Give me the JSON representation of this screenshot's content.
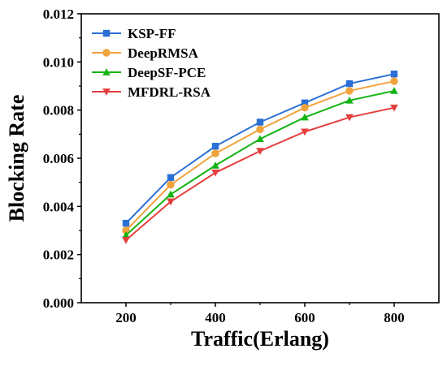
{
  "chart_data": {
    "type": "line",
    "title": "",
    "xlabel": "Traffic(Erlang)",
    "ylabel": "Blocking Rate",
    "x": [
      200,
      300,
      400,
      500,
      600,
      700,
      800
    ],
    "xlim": [
      100,
      900
    ],
    "ylim": [
      0,
      0.012
    ],
    "xticks": [
      "200",
      "400",
      "600",
      "800"
    ],
    "yticks": [
      "0.000",
      "0.002",
      "0.004",
      "0.006",
      "0.008",
      "0.010",
      "0.012"
    ],
    "legend_position": "top-left",
    "grid": false,
    "series": [
      {
        "name": "KSP-FF",
        "color": "#2a6fd6",
        "marker": "square",
        "values": [
          0.0033,
          0.0052,
          0.0065,
          0.0075,
          0.0083,
          0.0091,
          0.0095
        ]
      },
      {
        "name": "DeepRMSA",
        "color": "#f0a33c",
        "marker": "circle",
        "values": [
          0.003,
          0.0049,
          0.0062,
          0.0072,
          0.0081,
          0.0088,
          0.0092
        ]
      },
      {
        "name": "DeepSF-PCE",
        "color": "#13b313",
        "marker": "triangle-up",
        "values": [
          0.0028,
          0.0045,
          0.0057,
          0.0068,
          0.0077,
          0.0084,
          0.0088
        ]
      },
      {
        "name": "MFDRL-RSA",
        "color": "#e53e3e",
        "marker": "triangle-down",
        "values": [
          0.0026,
          0.0042,
          0.0054,
          0.0063,
          0.0071,
          0.0077,
          0.0081
        ]
      }
    ]
  }
}
